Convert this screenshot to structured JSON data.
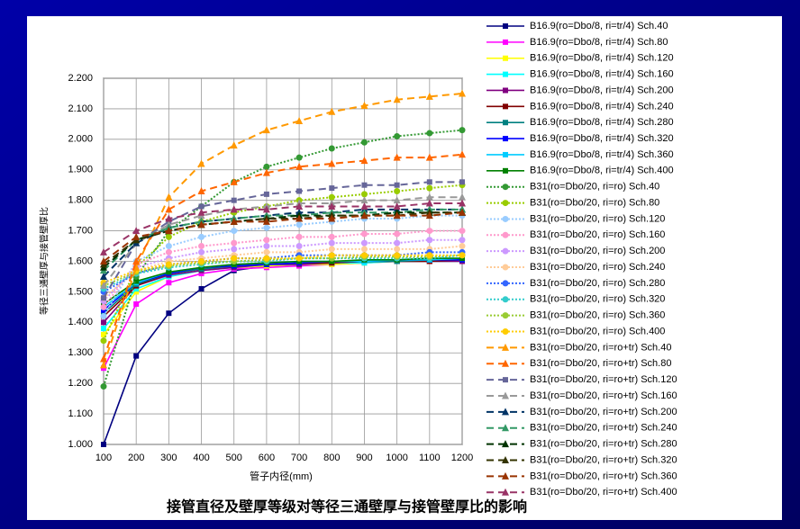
{
  "chart_data": {
    "type": "line",
    "title": "接管直径及壁厚等级对等径三通壁厚与接管壁厚比的影响",
    "xlabel": "管子内径(mm)",
    "ylabel": "等径三通壁厚与接管壁厚比",
    "x": [
      100,
      200,
      300,
      400,
      500,
      600,
      700,
      800,
      900,
      1000,
      1100,
      1200
    ],
    "xlim": [
      100,
      1200
    ],
    "xticks": [
      100,
      200,
      300,
      400,
      500,
      600,
      700,
      800,
      900,
      1000,
      1100,
      1200
    ],
    "ylim": [
      1.0,
      2.2
    ],
    "yticks": [
      {
        "value": 1.0,
        "label": "1.000"
      },
      {
        "value": 1.1,
        "label": "1.100"
      },
      {
        "value": 1.2,
        "label": "1.200"
      },
      {
        "value": 1.3,
        "label": "1.300"
      },
      {
        "value": 1.4,
        "label": "1.400"
      },
      {
        "value": 1.5,
        "label": "1.500"
      },
      {
        "value": 1.6,
        "label": "1.600"
      },
      {
        "value": 1.7,
        "label": "1.700"
      },
      {
        "value": 1.8,
        "label": "1.800"
      },
      {
        "value": 1.9,
        "label": "1.900"
      },
      {
        "value": 2.0,
        "label": "2.000"
      },
      {
        "value": 2.1,
        "label": "2.100"
      },
      {
        "value": 2.2,
        "label": "2.200"
      }
    ],
    "grid": true,
    "legend": "right",
    "series": [
      {
        "name": "B16.9(ro=Dbo/8, ri=tr/4) Sch.40",
        "color": "#000080",
        "line": "solid",
        "marker": "square",
        "values": [
          1.0,
          1.29,
          1.43,
          1.51,
          1.57,
          1.585,
          1.59,
          1.595,
          1.6,
          1.6,
          1.605,
          1.61
        ]
      },
      {
        "name": "B16.9(ro=Dbo/8, ri=tr/4) Sch.80",
        "color": "#ff00ff",
        "line": "solid",
        "marker": "square",
        "values": [
          1.25,
          1.46,
          1.53,
          1.56,
          1.575,
          1.58,
          1.585,
          1.59,
          1.595,
          1.6,
          1.6,
          1.6
        ]
      },
      {
        "name": "B16.9(ro=Dbo/8, ri=tr/4) Sch.120",
        "color": "#ffff00",
        "line": "solid",
        "marker": "square",
        "values": [
          1.36,
          1.5,
          1.55,
          1.57,
          1.58,
          1.585,
          1.59,
          1.59,
          1.595,
          1.6,
          1.6,
          1.6
        ]
      },
      {
        "name": "B16.9(ro=Dbo/8, ri=tr/4) Sch.160",
        "color": "#00ffff",
        "line": "solid",
        "marker": "square",
        "values": [
          1.38,
          1.51,
          1.55,
          1.57,
          1.58,
          1.59,
          1.59,
          1.595,
          1.595,
          1.6,
          1.6,
          1.6
        ]
      },
      {
        "name": "B16.9(ro=Dbo/8, ri=tr/4) Sch.200",
        "color": "#800080",
        "line": "solid",
        "marker": "square",
        "values": [
          1.4,
          1.52,
          1.555,
          1.57,
          1.58,
          1.59,
          1.59,
          1.595,
          1.6,
          1.6,
          1.6,
          1.6
        ]
      },
      {
        "name": "B16.9(ro=Dbo/8, ri=tr/4) Sch.240",
        "color": "#800000",
        "line": "solid",
        "marker": "square",
        "values": [
          1.42,
          1.52,
          1.56,
          1.575,
          1.585,
          1.59,
          1.595,
          1.595,
          1.6,
          1.6,
          1.6,
          1.605
        ]
      },
      {
        "name": "B16.9(ro=Dbo/8, ri=tr/4) Sch.280",
        "color": "#008080",
        "line": "solid",
        "marker": "square",
        "values": [
          1.43,
          1.525,
          1.56,
          1.575,
          1.585,
          1.59,
          1.595,
          1.6,
          1.6,
          1.6,
          1.605,
          1.605
        ]
      },
      {
        "name": "B16.9(ro=Dbo/8, ri=tr/4) Sch.320",
        "color": "#0000ff",
        "line": "solid",
        "marker": "square",
        "values": [
          1.44,
          1.53,
          1.56,
          1.58,
          1.585,
          1.59,
          1.595,
          1.6,
          1.6,
          1.605,
          1.605,
          1.605
        ]
      },
      {
        "name": "B16.9(ro=Dbo/8, ri=tr/4) Sch.360",
        "color": "#00ccff",
        "line": "solid",
        "marker": "square",
        "values": [
          1.45,
          1.53,
          1.565,
          1.58,
          1.59,
          1.595,
          1.6,
          1.6,
          1.6,
          1.605,
          1.605,
          1.61
        ]
      },
      {
        "name": "B16.9(ro=Dbo/8, ri=tr/4) Sch.400",
        "color": "#008000",
        "line": "solid",
        "marker": "square",
        "values": [
          1.46,
          1.535,
          1.565,
          1.58,
          1.59,
          1.595,
          1.6,
          1.6,
          1.605,
          1.605,
          1.61,
          1.61
        ]
      },
      {
        "name": "B31(ro=Dbo/20, ri=ro) Sch.40",
        "color": "#339933",
        "line": "dotted",
        "marker": "circle",
        "values": [
          1.19,
          1.55,
          1.7,
          1.78,
          1.86,
          1.91,
          1.94,
          1.97,
          1.99,
          2.01,
          2.02,
          2.03
        ]
      },
      {
        "name": "B31(ro=Dbo/20, ri=ro) Sch.80",
        "color": "#99cc00",
        "line": "dotted",
        "marker": "circle",
        "values": [
          1.34,
          1.58,
          1.68,
          1.73,
          1.76,
          1.78,
          1.8,
          1.81,
          1.82,
          1.83,
          1.84,
          1.85
        ]
      },
      {
        "name": "B31(ro=Dbo/20, ri=ro) Sch.120",
        "color": "#99ccff",
        "line": "dotted",
        "marker": "circle",
        "values": [
          1.42,
          1.6,
          1.65,
          1.68,
          1.7,
          1.71,
          1.72,
          1.73,
          1.74,
          1.74,
          1.75,
          1.75
        ]
      },
      {
        "name": "B31(ro=Dbo/20, ri=ro) Sch.160",
        "color": "#ff99cc",
        "line": "dotted",
        "marker": "circle",
        "values": [
          1.45,
          1.59,
          1.63,
          1.65,
          1.66,
          1.67,
          1.68,
          1.68,
          1.69,
          1.69,
          1.7,
          1.7
        ]
      },
      {
        "name": "B31(ro=Dbo/20, ri=ro) Sch.200",
        "color": "#cc99ff",
        "line": "dotted",
        "marker": "circle",
        "values": [
          1.47,
          1.58,
          1.61,
          1.63,
          1.64,
          1.65,
          1.65,
          1.66,
          1.66,
          1.66,
          1.67,
          1.67
        ]
      },
      {
        "name": "B31(ro=Dbo/20, ri=ro) Sch.240",
        "color": "#ffcc99",
        "line": "dotted",
        "marker": "circle",
        "values": [
          1.48,
          1.57,
          1.6,
          1.61,
          1.62,
          1.63,
          1.63,
          1.64,
          1.64,
          1.64,
          1.64,
          1.65
        ]
      },
      {
        "name": "B31(ro=Dbo/20, ri=ro) Sch.280",
        "color": "#3366ff",
        "line": "dotted",
        "marker": "circle",
        "values": [
          1.5,
          1.56,
          1.59,
          1.6,
          1.61,
          1.61,
          1.62,
          1.62,
          1.62,
          1.62,
          1.63,
          1.63
        ]
      },
      {
        "name": "B31(ro=Dbo/20, ri=ro) Sch.320",
        "color": "#33cccc",
        "line": "dotted",
        "marker": "circle",
        "values": [
          1.51,
          1.56,
          1.58,
          1.59,
          1.6,
          1.6,
          1.61,
          1.61,
          1.61,
          1.61,
          1.61,
          1.62
        ]
      },
      {
        "name": "B31(ro=Dbo/20, ri=ro) Sch.360",
        "color": "#99cc33",
        "line": "dotted",
        "marker": "circle",
        "values": [
          1.52,
          1.565,
          1.585,
          1.595,
          1.6,
          1.605,
          1.61,
          1.61,
          1.615,
          1.615,
          1.615,
          1.62
        ]
      },
      {
        "name": "B31(ro=Dbo/20, ri=ro) Sch.400",
        "color": "#ffcc00",
        "line": "dotted",
        "marker": "circle",
        "values": [
          1.53,
          1.57,
          1.59,
          1.6,
          1.61,
          1.61,
          1.61,
          1.62,
          1.62,
          1.62,
          1.62,
          1.62
        ]
      },
      {
        "name": "B31(ro=Dbo/20, ri=ro+tr) Sch.40",
        "color": "#ff9900",
        "line": "dashed",
        "marker": "triangle",
        "values": [
          1.26,
          1.58,
          1.81,
          1.92,
          1.98,
          2.03,
          2.06,
          2.09,
          2.11,
          2.13,
          2.14,
          2.15
        ]
      },
      {
        "name": "B31(ro=Dbo/20, ri=ro+tr) Sch.80",
        "color": "#ff6600",
        "line": "dashed",
        "marker": "triangle",
        "values": [
          1.28,
          1.6,
          1.77,
          1.83,
          1.86,
          1.89,
          1.91,
          1.92,
          1.93,
          1.94,
          1.94,
          1.95
        ]
      },
      {
        "name": "B31(ro=Dbo/20, ri=ro+tr) Sch.120",
        "color": "#666699",
        "line": "dashed",
        "marker": "square",
        "values": [
          1.48,
          1.66,
          1.73,
          1.78,
          1.8,
          1.82,
          1.83,
          1.84,
          1.85,
          1.85,
          1.86,
          1.86
        ]
      },
      {
        "name": "B31(ro=Dbo/20, ri=ro+tr) Sch.160",
        "color": "#999999",
        "line": "dashed",
        "marker": "triangle",
        "values": [
          1.52,
          1.66,
          1.72,
          1.75,
          1.77,
          1.78,
          1.79,
          1.79,
          1.8,
          1.8,
          1.81,
          1.81
        ]
      },
      {
        "name": "B31(ro=Dbo/20, ri=ro+tr) Sch.200",
        "color": "#003366",
        "line": "dashed",
        "marker": "triangle",
        "values": [
          1.55,
          1.66,
          1.71,
          1.73,
          1.74,
          1.75,
          1.76,
          1.76,
          1.77,
          1.77,
          1.77,
          1.77
        ]
      },
      {
        "name": "B31(ro=Dbo/20, ri=ro+tr) Sch.240",
        "color": "#339966",
        "line": "dashed",
        "marker": "triangle",
        "values": [
          1.57,
          1.67,
          1.71,
          1.73,
          1.74,
          1.75,
          1.75,
          1.76,
          1.76,
          1.76,
          1.77,
          1.77
        ]
      },
      {
        "name": "B31(ro=Dbo/20, ri=ro+tr) Sch.280",
        "color": "#003300",
        "line": "dashed",
        "marker": "triangle",
        "values": [
          1.58,
          1.67,
          1.7,
          1.72,
          1.73,
          1.74,
          1.75,
          1.75,
          1.75,
          1.76,
          1.76,
          1.76
        ]
      },
      {
        "name": "B31(ro=Dbo/20, ri=ro+tr) Sch.320",
        "color": "#333300",
        "line": "dashed",
        "marker": "triangle",
        "values": [
          1.59,
          1.67,
          1.7,
          1.72,
          1.73,
          1.74,
          1.74,
          1.75,
          1.75,
          1.75,
          1.76,
          1.76
        ]
      },
      {
        "name": "B31(ro=Dbo/20, ri=ro+tr) Sch.360",
        "color": "#993300",
        "line": "dashed",
        "marker": "triangle",
        "values": [
          1.6,
          1.68,
          1.7,
          1.72,
          1.73,
          1.73,
          1.74,
          1.74,
          1.75,
          1.75,
          1.75,
          1.76
        ]
      },
      {
        "name": "B31(ro=Dbo/20, ri=ro+tr) Sch.400",
        "color": "#993366",
        "line": "dashed",
        "marker": "triangle",
        "values": [
          1.63,
          1.7,
          1.74,
          1.76,
          1.77,
          1.77,
          1.78,
          1.78,
          1.78,
          1.78,
          1.79,
          1.79
        ]
      }
    ]
  }
}
